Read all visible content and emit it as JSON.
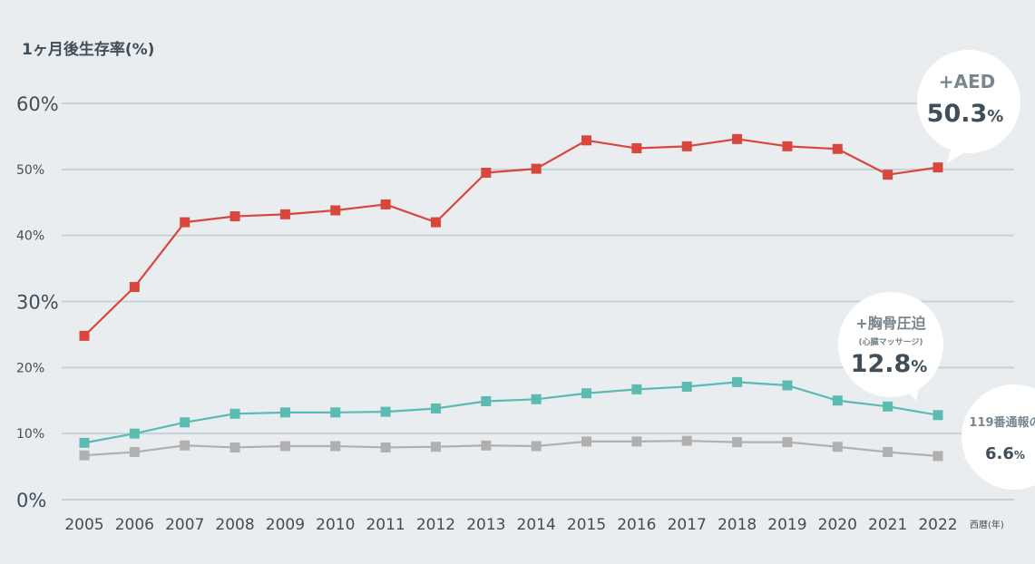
{
  "chart_data": {
    "type": "line",
    "ylabel": "1ヶ月後生存率(%)",
    "xlabel": "西暦(年)",
    "x": [
      "2005",
      "2006",
      "2007",
      "2008",
      "2009",
      "2010",
      "2011",
      "2012",
      "2013",
      "2014",
      "2015",
      "2016",
      "2017",
      "2018",
      "2019",
      "2020",
      "2021",
      "2022"
    ],
    "ylim": [
      0,
      60
    ],
    "yticks": [
      {
        "value": 0,
        "label": "0%"
      },
      {
        "value": 10,
        "label": "10%"
      },
      {
        "value": 20,
        "label": "20%"
      },
      {
        "value": 30,
        "label": "30%"
      },
      {
        "value": 40,
        "label": "40%"
      },
      {
        "value": 50,
        "label": "50%"
      },
      {
        "value": 60,
        "label": "60%"
      }
    ],
    "grid": true,
    "series": [
      {
        "color": "#d9473c",
        "values": [
          24.8,
          32.2,
          42.0,
          42.9,
          43.2,
          43.8,
          44.7,
          42.0,
          49.5,
          50.1,
          54.4,
          53.2,
          53.5,
          54.6,
          53.5,
          53.1,
          49.2,
          50.3
        ],
        "callout": {
          "name": "+AED",
          "sub": "",
          "value": "50.3",
          "unit": "%"
        }
      },
      {
        "color": "#5bbab2",
        "values": [
          8.6,
          10.0,
          11.7,
          13.0,
          13.2,
          13.2,
          13.3,
          13.8,
          14.9,
          15.2,
          16.1,
          16.7,
          17.1,
          17.8,
          17.3,
          15.0,
          14.1,
          12.8
        ],
        "callout": {
          "name": "+胸骨圧迫",
          "sub": "(心臓マッサージ)",
          "value": "12.8",
          "unit": "%"
        }
      },
      {
        "color": "#b0b0b0",
        "values": [
          6.7,
          7.2,
          8.2,
          7.9,
          8.1,
          8.1,
          7.9,
          8.0,
          8.2,
          8.1,
          8.8,
          8.8,
          8.9,
          8.7,
          8.7,
          8.0,
          7.2,
          6.6
        ],
        "callout": {
          "name": "119番通報の",
          "sub": "",
          "value": "6.6",
          "unit": "%"
        }
      }
    ]
  }
}
